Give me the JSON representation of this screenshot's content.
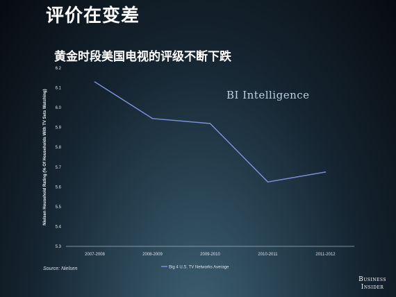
{
  "slide": {
    "title": "评价在变差",
    "watermark": "BI Intelligence",
    "source": "Source: Nielsen",
    "brand_line1": "Business",
    "brand_line2": "Insider"
  },
  "chart_data": {
    "type": "line",
    "title": "黄金时段美国电视的评级不断下跌",
    "xlabel": "",
    "ylabel": "Nielsen Household Rating (% Of Households With TV Sets Watching)",
    "categories": [
      "2007-2008",
      "2008-2009",
      "2009-2010",
      "2010-2011",
      "2011-2012"
    ],
    "series": [
      {
        "name": "Big 4 U.S. TV Networks Average",
        "values": [
          6.13,
          5.945,
          5.92,
          5.625,
          5.675
        ],
        "color": "#7b8fd4"
      }
    ],
    "ylim": [
      5.3,
      6.2
    ],
    "yticks": [
      "5.3",
      "5.4",
      "5.5",
      "5.6",
      "5.7",
      "5.8",
      "5.9",
      "6.0",
      "6.1",
      "6.2"
    ],
    "grid": false,
    "legend_position": "bottom-center"
  }
}
